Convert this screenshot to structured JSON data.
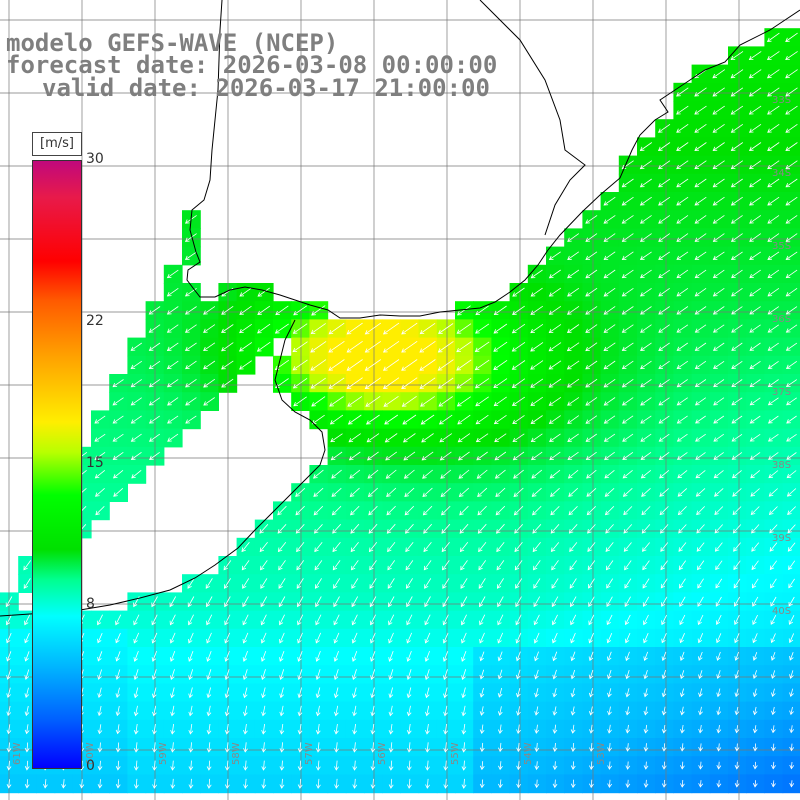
{
  "title": {
    "model": "modelo GEFS-WAVE (NCEP)",
    "forecast": "forecast date: 2026-03-08 00:00:00",
    "valid": "valid date: 2026-03-17 21:00:00"
  },
  "colorbar": {
    "unit": "[m/s]",
    "ticks": [
      {
        "label": "30",
        "value": 30
      },
      {
        "label": "22",
        "value": 22
      },
      {
        "label": "15",
        "value": 15
      },
      {
        "label": "8",
        "value": 8
      },
      {
        "label": "0",
        "value": 0
      }
    ],
    "min": 0,
    "max": 30
  },
  "map": {
    "variable": "wind speed and direction",
    "region": "Rio de la Plata estuary and adjacent South Atlantic",
    "land_color": "#ffffff",
    "coast_color": "#000000",
    "grid_color": "#777777",
    "arrow_color": "#ffffff",
    "lat_labels": [
      "33S",
      "34S",
      "35S",
      "36S",
      "37S",
      "38S",
      "39S",
      "40S"
    ],
    "lon_labels": [
      "61W",
      "60W",
      "59W",
      "58W",
      "57W",
      "56W",
      "55W",
      "54W",
      "53W"
    ],
    "lat_range": [
      -41,
      -31.5
    ],
    "lon_range": [
      -63,
      -52
    ]
  }
}
